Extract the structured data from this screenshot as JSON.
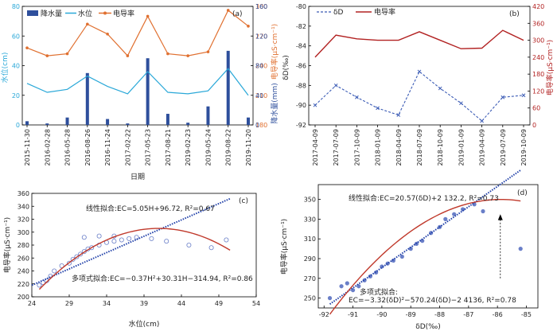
{
  "panels": {
    "a": {
      "tag": "(a)",
      "legend": [
        "降水量",
        "水位",
        "电导率"
      ],
      "xlabel": "日期",
      "ylabel_left": "水位(cm)",
      "ylabel_right_top": "电导率(μS·cm⁻¹)",
      "ylabel_right_bottom": "降水量(mm)",
      "x_ticks": [
        "2015-11-30",
        "2016-02-28",
        "2016-05-28",
        "2016-08-26",
        "2016-11-24",
        "2017-02-22",
        "2017-05-23",
        "2017-08-21",
        "2019-02-23",
        "2019-05-24",
        "2019-08-22",
        "2019-11-20"
      ],
      "left_ticks": [
        "0",
        "20",
        "40",
        "60",
        "80"
      ],
      "right_top_ticks": [
        "180",
        "210",
        "240",
        "270",
        "300"
      ],
      "right_bottom_ticks": [
        "0",
        "40",
        "80",
        "120",
        "160"
      ]
    },
    "b": {
      "tag": "(b)",
      "legend": [
        "δD",
        "电导率"
      ],
      "ylabel_left": "δD(‰)",
      "ylabel_right": "电导率(μS·cm⁻¹)",
      "x_ticks": [
        "2017-04-09",
        "2017-07-09",
        "2017-10-09",
        "2018-01-09",
        "2018-04-09",
        "2018-07-09",
        "2018-10-09",
        "2019-01-09",
        "2019-04-09",
        "2019-07-09",
        "2019-10-09"
      ],
      "left_ticks": [
        "-80",
        "-82",
        "-84",
        "-86",
        "-88",
        "-90",
        "-92"
      ],
      "right_ticks": [
        "420",
        "360",
        "300",
        "240",
        "180",
        "120",
        "60",
        "0"
      ]
    },
    "c": {
      "tag": "(c)",
      "xlabel": "水位(cm)",
      "ylabel": "电导率(μS·cm⁻¹)",
      "linear_fit": "线性拟合:EC=5.05H+96.72, R²=0.67",
      "poly_fit": "多项式拟合:EC=−0.37H²+30.31H−314.94, R²=0.86",
      "x_ticks": [
        "24",
        "29",
        "34",
        "39",
        "44",
        "49",
        "54"
      ],
      "y_ticks": [
        "200",
        "220",
        "240",
        "260",
        "280",
        "300",
        "320",
        "340",
        "360"
      ]
    },
    "d": {
      "tag": "(d)",
      "xlabel": "δD(‰)",
      "ylabel": "电导率(μS·cm⁻¹)",
      "linear_fit": "线性拟合:EC=20.57(δD)+2 132.2, R²=0.73",
      "poly_fit_1": "多项式拟合:",
      "poly_fit_2": "EC=−3.32(δD)²−570.24(δD)−2 4136, R²=0.78",
      "x_ticks": [
        "-92",
        "-91",
        "-90",
        "-89",
        "-88",
        "-87",
        "-86",
        "-85"
      ],
      "y_ticks": [
        "250",
        "270",
        "290",
        "310",
        "330",
        "350"
      ]
    }
  },
  "colors": {
    "precip": "#2e4f9c",
    "water_level": "#2aa8d8",
    "conductivity": "#e07030",
    "deltaD": "#3b5bb5",
    "ec_b": "#b22222",
    "scatter": "#6a7fc8",
    "linear": "#1f3fa8",
    "poly": "#c0392b"
  },
  "chart_data": [
    {
      "type": "line",
      "panel": "a",
      "x": [
        "2015-11-30",
        "2016-02-28",
        "2016-05-28",
        "2016-08-26",
        "2016-11-24",
        "2017-02-22",
        "2017-05-23",
        "2017-08-21",
        "2019-02-23",
        "2019-05-24",
        "2019-08-22",
        "2019-11-20"
      ],
      "series": [
        {
          "name": "水位",
          "values": [
            28,
            22,
            24,
            33,
            26,
            21,
            36,
            22,
            21,
            23,
            38,
            20
          ]
        },
        {
          "name": "电导率",
          "values": [
            258,
            250,
            252,
            282,
            272,
            250,
            290,
            252,
            250,
            254,
            296,
            280
          ]
        },
        {
          "name": "降水量",
          "values": [
            5,
            2,
            10,
            70,
            8,
            2,
            90,
            15,
            3,
            25,
            100,
            10
          ]
        }
      ]
    },
    {
      "type": "line",
      "panel": "b",
      "x": [
        "2017-04-09",
        "2017-07-09",
        "2017-10-09",
        "2018-01-09",
        "2018-04-09",
        "2018-07-09",
        "2018-10-09",
        "2019-01-09",
        "2019-04-09",
        "2019-07-09",
        "2019-10-09"
      ],
      "series": [
        {
          "name": "δD",
          "values": [
            -90.0,
            -88.0,
            -89.2,
            -90.3,
            -91.0,
            -86.6,
            -88.3,
            -89.8,
            -91.6,
            -89.2,
            -89.0
          ]
        },
        {
          "name": "电导率",
          "values": [
            240,
            318,
            305,
            300,
            300,
            330,
            300,
            270,
            272,
            335,
            300
          ]
        }
      ]
    },
    {
      "type": "scatter",
      "panel": "c",
      "points": [
        [
          25,
          218
        ],
        [
          25.5,
          222
        ],
        [
          26,
          225
        ],
        [
          26.5,
          232
        ],
        [
          27,
          240
        ],
        [
          28,
          248
        ],
        [
          29,
          252
        ],
        [
          29.5,
          258
        ],
        [
          30,
          262
        ],
        [
          30.5,
          266
        ],
        [
          31,
          270
        ],
        [
          31.5,
          274
        ],
        [
          32,
          276
        ],
        [
          33,
          280
        ],
        [
          34,
          284
        ],
        [
          35,
          286
        ],
        [
          36,
          288
        ],
        [
          37,
          290
        ],
        [
          38,
          292
        ],
        [
          40,
          290
        ],
        [
          42,
          286
        ],
        [
          45,
          280
        ],
        [
          48,
          276
        ],
        [
          50,
          288
        ],
        [
          33,
          294
        ],
        [
          35,
          294
        ],
        [
          31,
          292
        ]
      ]
    },
    {
      "type": "scatter",
      "panel": "d",
      "points": [
        [
          -91.8,
          250
        ],
        [
          -91.4,
          262
        ],
        [
          -91.2,
          265
        ],
        [
          -91,
          258
        ],
        [
          -90.8,
          262
        ],
        [
          -90.6,
          268
        ],
        [
          -90.4,
          272
        ],
        [
          -90.2,
          276
        ],
        [
          -90,
          282
        ],
        [
          -89.8,
          285
        ],
        [
          -89.6,
          288
        ],
        [
          -89.3,
          292
        ],
        [
          -89,
          300
        ],
        [
          -88.8,
          305
        ],
        [
          -88.6,
          308
        ],
        [
          -88.3,
          316
        ],
        [
          -88,
          322
        ],
        [
          -87.8,
          330
        ],
        [
          -87.5,
          335
        ],
        [
          -87.2,
          340
        ],
        [
          -86.8,
          345
        ],
        [
          -86.5,
          338
        ],
        [
          -85.2,
          300
        ]
      ]
    }
  ]
}
